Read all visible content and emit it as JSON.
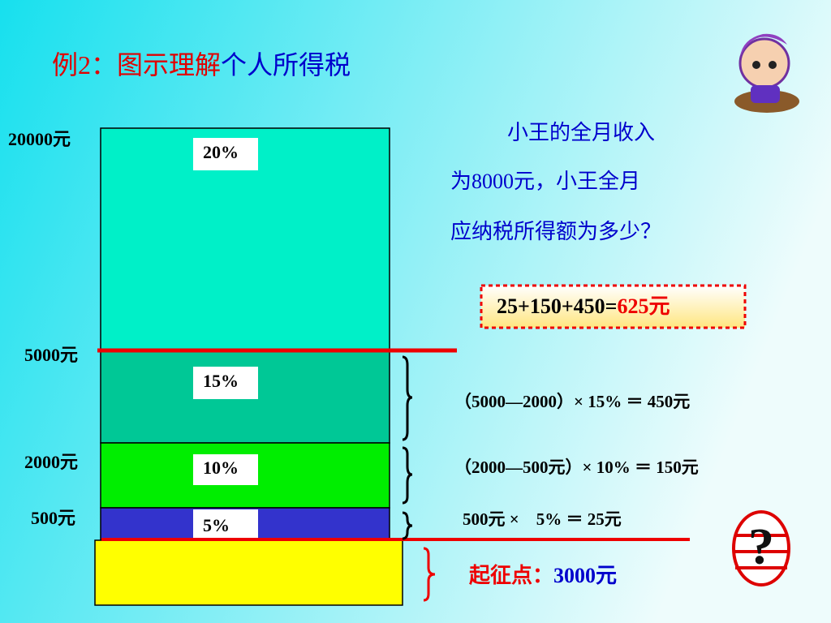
{
  "title": {
    "prefix": "例2：图示理解",
    "main": "个人所得税"
  },
  "levels": [
    "20000元",
    "5000元",
    "2000元",
    "500元"
  ],
  "rates": [
    "20%",
    "15%",
    "10%",
    "5%"
  ],
  "question": [
    "小王的全月收入",
    "为8000元，小王全月",
    "应纳税所得额为多少？"
  ],
  "answer": {
    "sum": "25+150+450=",
    "result": "625元"
  },
  "calculations": [
    "（5000—2000）× 15% ＝ 450元",
    "（2000—500元）× 10% ＝ 150元",
    "500元 ×　5% ＝ 25元"
  ],
  "threshold": {
    "label": "起征点：",
    "value": "3000元"
  }
}
